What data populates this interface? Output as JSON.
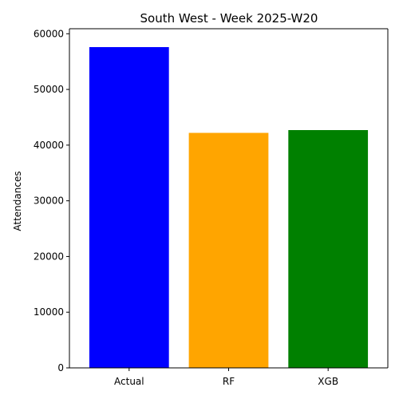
{
  "chart_data": {
    "type": "bar",
    "title": "South West - Week 2025-W20",
    "xlabel": "",
    "ylabel": "Attendances",
    "categories": [
      "Actual",
      "RF",
      "XGB"
    ],
    "values": [
      57600,
      42200,
      42700
    ],
    "colors": [
      "#0000ff",
      "#ffa500",
      "#008000"
    ],
    "ylim": [
      0,
      60900
    ],
    "yticks": [
      0,
      10000,
      20000,
      30000,
      40000,
      50000,
      60000
    ],
    "ytick_labels": [
      "0",
      "10000",
      "20000",
      "30000",
      "40000",
      "50000",
      "60000"
    ],
    "grid": false,
    "legend": "none"
  }
}
